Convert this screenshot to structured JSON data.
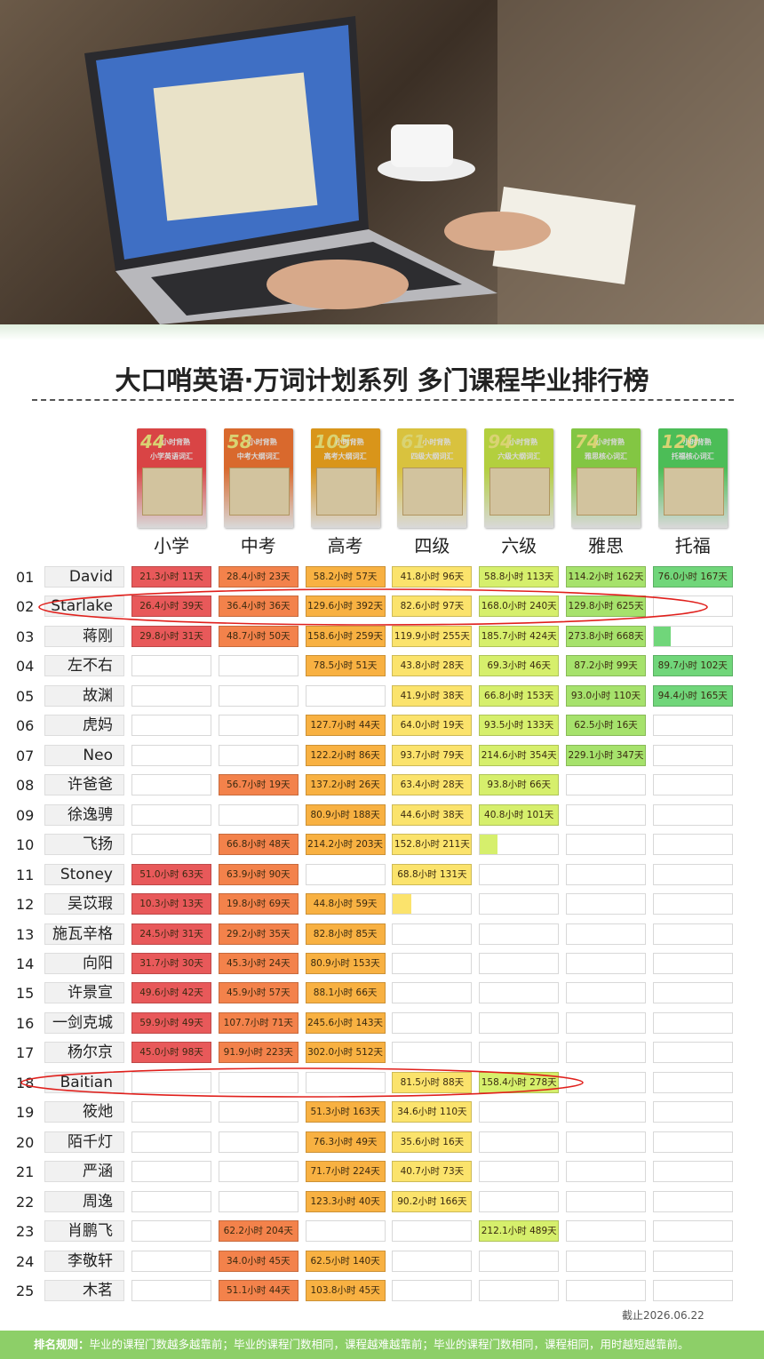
{
  "title": "大口哨英语·万词计划系列 多门课程毕业排行榜",
  "columns": [
    {
      "label": "小学",
      "color": "#e8595a",
      "cover": {
        "hours": "44",
        "tag": "小时背熟",
        "subtitle": "小学英语词汇"
      }
    },
    {
      "label": "中考",
      "color": "#f3824b",
      "cover": {
        "hours": "58",
        "tag": "小时背熟",
        "subtitle": "中考大纲词汇"
      }
    },
    {
      "label": "高考",
      "color": "#f8b142",
      "cover": {
        "hours": "105",
        "tag": "小时背熟",
        "subtitle": "高考大纲词汇"
      }
    },
    {
      "label": "四级",
      "color": "#fbe36c",
      "cover": {
        "hours": "61",
        "tag": "小时背熟",
        "subtitle": "四级大纲词汇"
      }
    },
    {
      "label": "六级",
      "color": "#d6ef6c",
      "cover": {
        "hours": "94",
        "tag": "小时背熟",
        "subtitle": "六级大纲词汇"
      }
    },
    {
      "label": "雅思",
      "color": "#a6e26c",
      "cover": {
        "hours": "74",
        "tag": "小时背熟",
        "subtitle": "雅思核心词汇"
      }
    },
    {
      "label": "托福",
      "color": "#70d67a",
      "cover": {
        "hours": "120",
        "tag": "小时背熟",
        "subtitle": "托福核心词汇"
      }
    }
  ],
  "rows": [
    {
      "rank": "01",
      "name": "David",
      "cells": [
        "21.3小时 11天",
        "28.4小时 23天",
        "58.2小时 57天",
        "41.8小时 96天",
        "58.8小时 113天",
        "114.2小时 162天",
        "76.0小时 167天"
      ]
    },
    {
      "rank": "02",
      "name": "Starlake",
      "cells": [
        "26.4小时 39天",
        "36.4小时 36天",
        "129.6小时 392天",
        "82.6小时 97天",
        "168.0小时 240天",
        "129.8小时 625天",
        null
      ]
    },
    {
      "rank": "03",
      "name": "蒋刚",
      "cells": [
        "29.8小时 31天",
        "48.7小时 50天",
        "158.6小时 259天",
        "119.9小时 255天",
        "185.7小时 424天",
        "273.8小时 668天",
        {
          "progress": 22
        }
      ]
    },
    {
      "rank": "04",
      "name": "左不右",
      "cells": [
        null,
        null,
        "78.5小时 51天",
        "43.8小时 28天",
        "69.3小时 46天",
        "87.2小时 99天",
        "89.7小时 102天"
      ]
    },
    {
      "rank": "05",
      "name": "故渊",
      "cells": [
        null,
        null,
        null,
        "41.9小时 38天",
        "66.8小时 153天",
        "93.0小时 110天",
        "94.4小时 165天"
      ]
    },
    {
      "rank": "06",
      "name": "虎妈",
      "cells": [
        null,
        null,
        "127.7小时 44天",
        "64.0小时 19天",
        "93.5小时 133天",
        "62.5小时 16天",
        null
      ]
    },
    {
      "rank": "07",
      "name": "Neo",
      "cells": [
        null,
        null,
        "122.2小时 86天",
        "93.7小时 79天",
        "214.6小时 354天",
        "229.1小时 347天",
        null
      ]
    },
    {
      "rank": "08",
      "name": "许爸爸",
      "cells": [
        null,
        "56.7小时 19天",
        "137.2小时 26天",
        "63.4小时 28天",
        "93.8小时 66天",
        null,
        null
      ]
    },
    {
      "rank": "09",
      "name": "徐逸骋",
      "cells": [
        null,
        null,
        "80.9小时 188天",
        "44.6小时 38天",
        "40.8小时 101天",
        null,
        null
      ]
    },
    {
      "rank": "10",
      "name": "飞扬",
      "cells": [
        null,
        "66.8小时 48天",
        "214.2小时 203天",
        "152.8小时 211天",
        {
          "progress": 22
        },
        null,
        null
      ]
    },
    {
      "rank": "11",
      "name": "Stoney",
      "cells": [
        "51.0小时 63天",
        "63.9小时 90天",
        null,
        "68.8小时 131天",
        null,
        null,
        null
      ]
    },
    {
      "rank": "12",
      "name": "吴苡瑕",
      "cells": [
        "10.3小时 13天",
        "19.8小时 69天",
        "44.8小时 59天",
        {
          "progress": 23
        },
        null,
        null,
        null
      ]
    },
    {
      "rank": "13",
      "name": "施瓦辛格",
      "cells": [
        "24.5小时 31天",
        "29.2小时 35天",
        "82.8小时 85天",
        null,
        null,
        null,
        null
      ]
    },
    {
      "rank": "14",
      "name": "向阳",
      "cells": [
        "31.7小时 30天",
        "45.3小时 24天",
        "80.9小时 153天",
        null,
        null,
        null,
        null
      ]
    },
    {
      "rank": "15",
      "name": "许景宣",
      "cells": [
        "49.6小时 42天",
        "45.9小时 57天",
        "88.1小时 66天",
        null,
        null,
        null,
        null
      ]
    },
    {
      "rank": "16",
      "name": "一剑克城",
      "cells": [
        "59.9小时 49天",
        "107.7小时 71天",
        "245.6小时 143天",
        null,
        null,
        null,
        null
      ]
    },
    {
      "rank": "17",
      "name": "杨尔京",
      "cells": [
        "45.0小时 98天",
        "91.9小时 223天",
        "302.0小时 512天",
        null,
        null,
        null,
        null
      ]
    },
    {
      "rank": "18",
      "name": "Baitian",
      "cells": [
        null,
        null,
        null,
        "81.5小时 88天",
        "158.4小时 278天",
        null,
        null
      ]
    },
    {
      "rank": "19",
      "name": "筱灺",
      "cells": [
        null,
        null,
        "51.3小时 163天",
        "34.6小时 110天",
        null,
        null,
        null
      ]
    },
    {
      "rank": "20",
      "name": "陌千灯",
      "cells": [
        null,
        null,
        "76.3小时 49天",
        "35.6小时 16天",
        null,
        null,
        null
      ]
    },
    {
      "rank": "21",
      "name": "严涵",
      "cells": [
        null,
        null,
        "71.7小时 224天",
        "40.7小时 73天",
        null,
        null,
        null
      ]
    },
    {
      "rank": "22",
      "name": "周逸",
      "cells": [
        null,
        null,
        "123.3小时 40天",
        "90.2小时 166天",
        null,
        null,
        null
      ]
    },
    {
      "rank": "23",
      "name": "肖鹏飞",
      "cells": [
        null,
        "62.2小时 204天",
        null,
        null,
        "212.1小时 489天",
        null,
        null
      ]
    },
    {
      "rank": "24",
      "name": "李敬轩",
      "cells": [
        null,
        "34.0小时 45天",
        "62.5小时 140天",
        null,
        null,
        null,
        null
      ]
    },
    {
      "rank": "25",
      "name": "木茗",
      "cells": [
        null,
        "51.1小时 44天",
        "103.8小时 45天",
        null,
        null,
        null,
        null
      ]
    }
  ],
  "date": "截止2026.06.22",
  "rules": {
    "label": "排名规则：",
    "text": "毕业的课程门数越多越靠前；毕业的课程门数相同，课程越难越靠前；毕业的课程门数相同，课程相同，用时越短越靠前。"
  }
}
